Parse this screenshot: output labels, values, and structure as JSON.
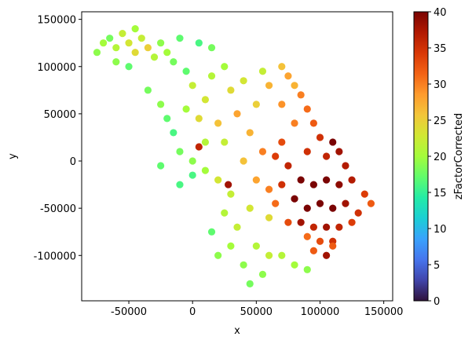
{
  "chart_data": {
    "type": "scatter",
    "xlabel": "x",
    "ylabel": "y",
    "colorbar_label": "zFactorCorrected",
    "colormap": "turbo",
    "xlim": [
      -87000,
      157000
    ],
    "ylim": [
      -148000,
      158000
    ],
    "clim": [
      0,
      40
    ],
    "xticks": [
      -50000,
      0,
      50000,
      100000,
      150000
    ],
    "yticks": [
      -100000,
      -50000,
      0,
      50000,
      100000,
      150000
    ],
    "cticks": [
      0,
      5,
      10,
      15,
      20,
      25,
      30,
      35,
      40
    ],
    "x": [
      -75000,
      -70000,
      -65000,
      -60000,
      -55000,
      -50000,
      -45000,
      -45000,
      -40000,
      -35000,
      -30000,
      -25000,
      -20000,
      -15000,
      -60000,
      -50000,
      -10000,
      5000,
      15000,
      -5000,
      -35000,
      -25000,
      -20000,
      -15000,
      -25000,
      -10000,
      -10000,
      0,
      10000,
      15000,
      5000,
      20000,
      30000,
      25000,
      10000,
      0,
      10000,
      20000,
      30000,
      25000,
      35000,
      30000,
      40000,
      45000,
      50000,
      55000,
      60000,
      15000,
      20000,
      45000,
      40000,
      45000,
      50000,
      40000,
      55000,
      60000,
      35000,
      55000,
      50000,
      5000,
      28000,
      25000,
      -5000,
      0,
      70000,
      75000,
      80000,
      85000,
      70000,
      90000,
      95000,
      80000,
      100000,
      110000,
      115000,
      105000,
      120000,
      70000,
      65000,
      75000,
      90000,
      85000,
      95000,
      105000,
      115000,
      125000,
      135000,
      140000,
      80000,
      90000,
      100000,
      110000,
      120000,
      130000,
      85000,
      95000,
      105000,
      115000,
      125000,
      100000,
      110000,
      90000,
      75000,
      65000,
      60000,
      70000,
      95000,
      105000,
      110000,
      70000,
      80000,
      90000,
      60000
    ],
    "y": [
      115000,
      125000,
      130000,
      120000,
      135000,
      125000,
      140000,
      115000,
      130000,
      120000,
      110000,
      125000,
      115000,
      105000,
      105000,
      100000,
      130000,
      125000,
      120000,
      95000,
      75000,
      60000,
      45000,
      30000,
      -5000,
      10000,
      -25000,
      80000,
      65000,
      90000,
      45000,
      40000,
      75000,
      20000,
      20000,
      0,
      -10000,
      -20000,
      -35000,
      -55000,
      -70000,
      -90000,
      -110000,
      -130000,
      -90000,
      -120000,
      -100000,
      -75000,
      -100000,
      -50000,
      0,
      30000,
      60000,
      85000,
      95000,
      80000,
      50000,
      10000,
      -20000,
      15000,
      -25000,
      100000,
      55000,
      -15000,
      100000,
      90000,
      80000,
      70000,
      60000,
      55000,
      40000,
      40000,
      25000,
      20000,
      10000,
      5000,
      -5000,
      20000,
      5000,
      -5000,
      10000,
      -20000,
      -25000,
      -20000,
      -25000,
      -20000,
      -35000,
      -45000,
      -40000,
      -50000,
      -45000,
      -50000,
      -45000,
      -55000,
      -65000,
      -70000,
      -70000,
      -70000,
      -65000,
      -85000,
      -85000,
      -80000,
      -65000,
      -45000,
      -30000,
      -25000,
      -95000,
      -100000,
      -90000,
      -100000,
      -110000,
      -115000,
      -60000
    ],
    "c": [
      19,
      20,
      18,
      21,
      22,
      23,
      20,
      24,
      22,
      25,
      21,
      19,
      20,
      18,
      19,
      17,
      17,
      16,
      18,
      17,
      18,
      19,
      17,
      16,
      17,
      18,
      16,
      22,
      23,
      21,
      24,
      26,
      24,
      22,
      21,
      19,
      20,
      23,
      22,
      21,
      22,
      20,
      19,
      18,
      21,
      19,
      22,
      17,
      19,
      23,
      26,
      27,
      25,
      23,
      22,
      27,
      28,
      30,
      28,
      36,
      38,
      20,
      20,
      16,
      26,
      28,
      27,
      30,
      29,
      31,
      32,
      30,
      35,
      40,
      38,
      36,
      37,
      33,
      34,
      36,
      35,
      40,
      40,
      40,
      39,
      37,
      34,
      32,
      40,
      40,
      40,
      40,
      38,
      35,
      38,
      36,
      38,
      36,
      34,
      33,
      35,
      31,
      33,
      31,
      30,
      35,
      32,
      38,
      32,
      21,
      20,
      19,
      24
    ]
  }
}
